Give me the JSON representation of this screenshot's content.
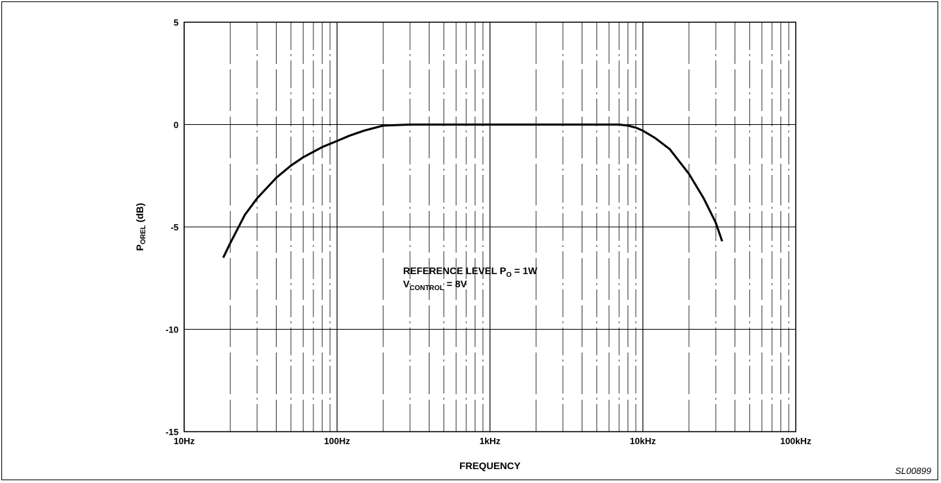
{
  "chart_data": {
    "type": "line",
    "xlabel": "FREQUENCY",
    "ylabel": "P",
    "ylabel_sub": "OREL",
    "ylabel_unit": " (dB)",
    "x_scale": "log",
    "xlim": [
      10,
      100000
    ],
    "ylim": [
      -15,
      5
    ],
    "x_ticks": [
      10,
      100,
      1000,
      10000,
      100000
    ],
    "x_tick_labels": [
      "10Hz",
      "100Hz",
      "1kHz",
      "10kHz",
      "100kHz"
    ],
    "y_ticks": [
      5,
      0,
      -5,
      -10,
      -15
    ],
    "y_tick_labels": [
      "5",
      "0",
      "-5",
      "-10",
      "-15"
    ],
    "grid": true,
    "series": [
      {
        "x": [
          18,
          20,
          25,
          30,
          40,
          50,
          60,
          80,
          100,
          120,
          150,
          200,
          300,
          500,
          1000,
          2000,
          5000,
          7000,
          8000,
          9000,
          10000,
          12000,
          15000,
          20000,
          25000,
          30000,
          33000
        ],
        "y": [
          -6.5,
          -5.8,
          -4.4,
          -3.6,
          -2.6,
          -2.0,
          -1.6,
          -1.1,
          -0.8,
          -0.55,
          -0.3,
          -0.05,
          0,
          0,
          0,
          0,
          0,
          0,
          -0.05,
          -0.15,
          -0.3,
          -0.65,
          -1.2,
          -2.4,
          -3.6,
          -4.8,
          -5.7
        ]
      }
    ],
    "annotations": [
      {
        "prefix": "REFERENCE LEVEL P",
        "sub": "O",
        "suffix": " = 1W"
      },
      {
        "prefix": "V",
        "sub": "CONTROL",
        "suffix": " = 8V"
      }
    ]
  },
  "figure_id": "SL00899"
}
